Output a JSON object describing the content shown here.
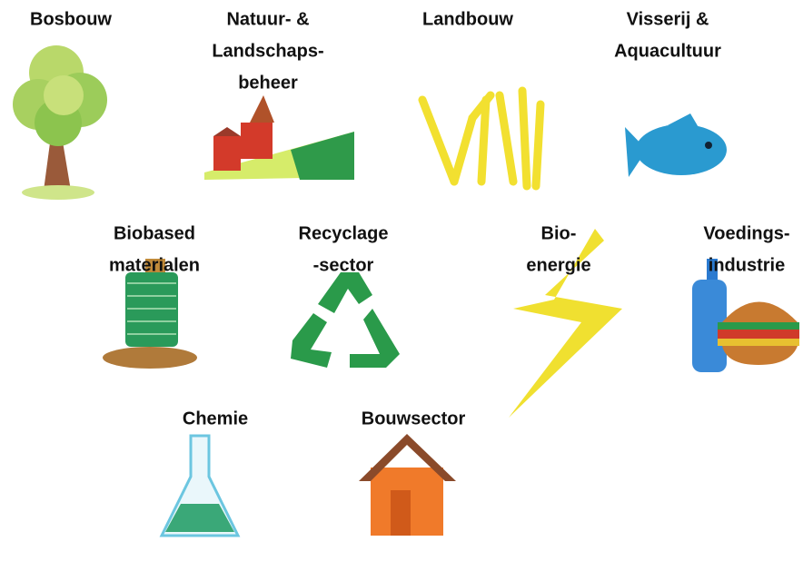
{
  "sectors": [
    {
      "label": [
        "Bosbouw"
      ]
    },
    {
      "label": [
        "Natuur- &",
        "Landschaps-",
        "beheer"
      ]
    },
    {
      "label": [
        "Landbouw"
      ]
    },
    {
      "label": [
        "Visserij &",
        "Aquacultuur"
      ]
    },
    {
      "label": [
        "Biobased",
        "materialen"
      ]
    },
    {
      "label": [
        "Recyclage",
        "-sector"
      ]
    },
    {
      "label": [
        "Bio-",
        "energie"
      ]
    },
    {
      "label": [
        "Voedings-",
        "industrie"
      ]
    },
    {
      "label": [
        "Chemie"
      ]
    },
    {
      "label": [
        "Bouwsector"
      ]
    }
  ]
}
